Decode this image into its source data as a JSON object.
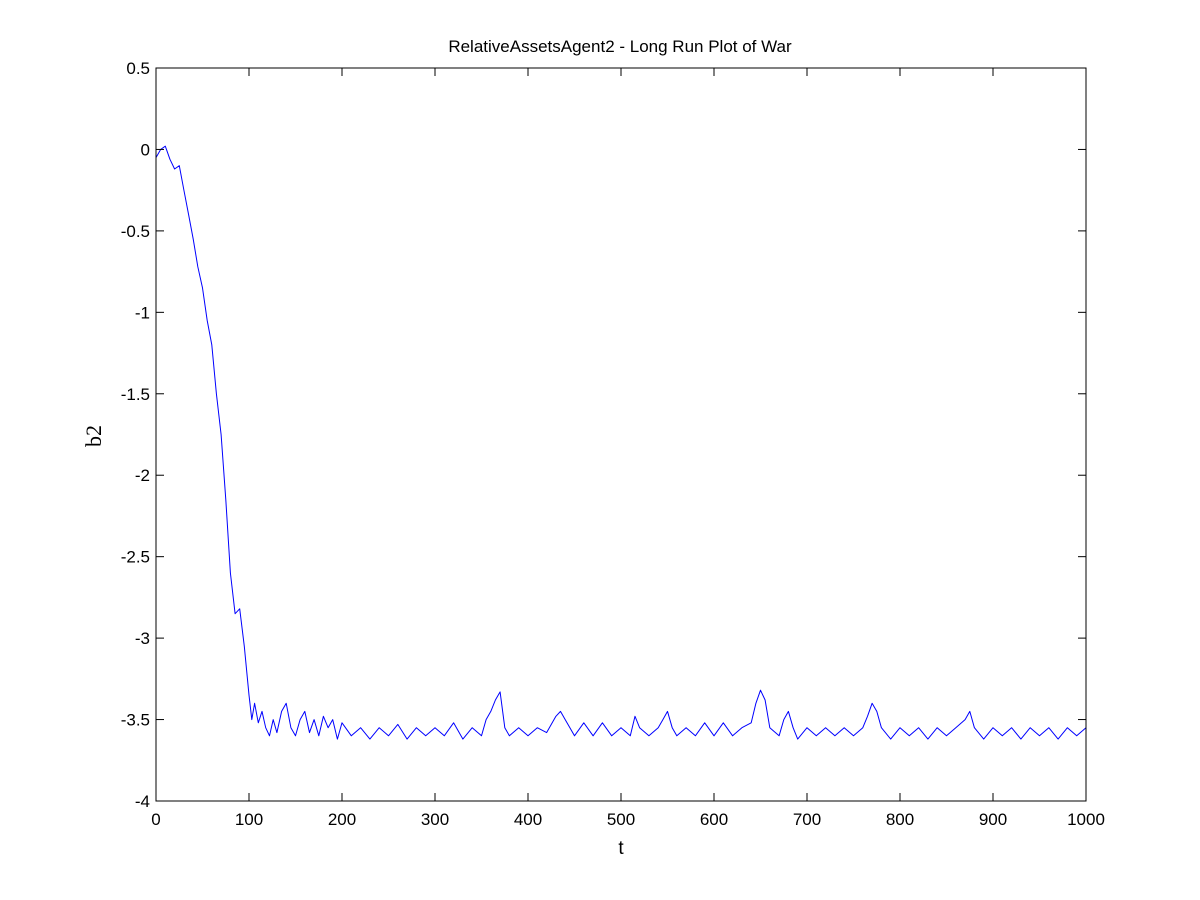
{
  "chart_data": {
    "type": "line",
    "title": "RelativeAssetsAgent2 - Long Run Plot of War",
    "xlabel": "t",
    "ylabel": "b2",
    "xlim": [
      0,
      1000
    ],
    "ylim": [
      -4,
      0.5
    ],
    "x_ticks": [
      0,
      100,
      200,
      300,
      400,
      500,
      600,
      700,
      800,
      900,
      1000
    ],
    "x_tick_labels": [
      "0",
      "100",
      "200",
      "300",
      "400",
      "500",
      "600",
      "700",
      "800",
      "900",
      "1000"
    ],
    "y_ticks": [
      0.5,
      0,
      -0.5,
      -1,
      -1.5,
      -2,
      -2.5,
      -3,
      -3.5,
      -4
    ],
    "y_tick_labels": [
      "0.5",
      "0",
      "-0.5",
      "-1",
      "-1.5",
      "-2",
      "-2.5",
      "-3",
      "-3.5",
      "-4"
    ],
    "grid": false,
    "series_color": "#0000ff",
    "series": [
      {
        "name": "",
        "points": [
          [
            0,
            -0.05
          ],
          [
            5,
            0.0
          ],
          [
            10,
            0.02
          ],
          [
            15,
            -0.06
          ],
          [
            20,
            -0.12
          ],
          [
            25,
            -0.1
          ],
          [
            30,
            -0.25
          ],
          [
            35,
            -0.4
          ],
          [
            40,
            -0.55
          ],
          [
            45,
            -0.72
          ],
          [
            50,
            -0.85
          ],
          [
            55,
            -1.05
          ],
          [
            60,
            -1.2
          ],
          [
            65,
            -1.5
          ],
          [
            70,
            -1.75
          ],
          [
            75,
            -2.15
          ],
          [
            80,
            -2.6
          ],
          [
            85,
            -2.85
          ],
          [
            90,
            -2.82
          ],
          [
            95,
            -3.05
          ],
          [
            100,
            -3.35
          ],
          [
            103,
            -3.5
          ],
          [
            106,
            -3.4
          ],
          [
            110,
            -3.52
          ],
          [
            114,
            -3.45
          ],
          [
            118,
            -3.55
          ],
          [
            122,
            -3.6
          ],
          [
            126,
            -3.5
          ],
          [
            130,
            -3.58
          ],
          [
            135,
            -3.45
          ],
          [
            140,
            -3.4
          ],
          [
            145,
            -3.55
          ],
          [
            150,
            -3.6
          ],
          [
            155,
            -3.5
          ],
          [
            160,
            -3.45
          ],
          [
            165,
            -3.58
          ],
          [
            170,
            -3.5
          ],
          [
            175,
            -3.6
          ],
          [
            180,
            -3.48
          ],
          [
            185,
            -3.55
          ],
          [
            190,
            -3.5
          ],
          [
            195,
            -3.62
          ],
          [
            200,
            -3.52
          ],
          [
            210,
            -3.6
          ],
          [
            220,
            -3.55
          ],
          [
            230,
            -3.62
          ],
          [
            240,
            -3.55
          ],
          [
            250,
            -3.6
          ],
          [
            260,
            -3.53
          ],
          [
            270,
            -3.62
          ],
          [
            280,
            -3.55
          ],
          [
            290,
            -3.6
          ],
          [
            300,
            -3.55
          ],
          [
            310,
            -3.6
          ],
          [
            320,
            -3.52
          ],
          [
            330,
            -3.62
          ],
          [
            340,
            -3.55
          ],
          [
            350,
            -3.6
          ],
          [
            355,
            -3.5
          ],
          [
            360,
            -3.45
          ],
          [
            365,
            -3.38
          ],
          [
            370,
            -3.33
          ],
          [
            375,
            -3.55
          ],
          [
            380,
            -3.6
          ],
          [
            390,
            -3.55
          ],
          [
            400,
            -3.6
          ],
          [
            410,
            -3.55
          ],
          [
            420,
            -3.58
          ],
          [
            430,
            -3.48
          ],
          [
            435,
            -3.45
          ],
          [
            440,
            -3.5
          ],
          [
            450,
            -3.6
          ],
          [
            460,
            -3.52
          ],
          [
            470,
            -3.6
          ],
          [
            480,
            -3.52
          ],
          [
            490,
            -3.6
          ],
          [
            500,
            -3.55
          ],
          [
            510,
            -3.6
          ],
          [
            515,
            -3.48
          ],
          [
            520,
            -3.55
          ],
          [
            530,
            -3.6
          ],
          [
            540,
            -3.55
          ],
          [
            545,
            -3.5
          ],
          [
            550,
            -3.45
          ],
          [
            555,
            -3.55
          ],
          [
            560,
            -3.6
          ],
          [
            570,
            -3.55
          ],
          [
            580,
            -3.6
          ],
          [
            590,
            -3.52
          ],
          [
            600,
            -3.6
          ],
          [
            610,
            -3.52
          ],
          [
            620,
            -3.6
          ],
          [
            630,
            -3.55
          ],
          [
            640,
            -3.52
          ],
          [
            645,
            -3.4
          ],
          [
            650,
            -3.32
          ],
          [
            655,
            -3.38
          ],
          [
            660,
            -3.55
          ],
          [
            670,
            -3.6
          ],
          [
            675,
            -3.5
          ],
          [
            680,
            -3.45
          ],
          [
            685,
            -3.55
          ],
          [
            690,
            -3.62
          ],
          [
            700,
            -3.55
          ],
          [
            710,
            -3.6
          ],
          [
            720,
            -3.55
          ],
          [
            730,
            -3.6
          ],
          [
            740,
            -3.55
          ],
          [
            750,
            -3.6
          ],
          [
            760,
            -3.55
          ],
          [
            765,
            -3.48
          ],
          [
            770,
            -3.4
          ],
          [
            775,
            -3.45
          ],
          [
            780,
            -3.55
          ],
          [
            790,
            -3.62
          ],
          [
            800,
            -3.55
          ],
          [
            810,
            -3.6
          ],
          [
            820,
            -3.55
          ],
          [
            830,
            -3.62
          ],
          [
            840,
            -3.55
          ],
          [
            850,
            -3.6
          ],
          [
            860,
            -3.55
          ],
          [
            870,
            -3.5
          ],
          [
            875,
            -3.45
          ],
          [
            880,
            -3.55
          ],
          [
            890,
            -3.62
          ],
          [
            900,
            -3.55
          ],
          [
            910,
            -3.6
          ],
          [
            920,
            -3.55
          ],
          [
            930,
            -3.62
          ],
          [
            940,
            -3.55
          ],
          [
            950,
            -3.6
          ],
          [
            960,
            -3.55
          ],
          [
            970,
            -3.62
          ],
          [
            980,
            -3.55
          ],
          [
            990,
            -3.6
          ],
          [
            1000,
            -3.55
          ]
        ]
      }
    ]
  }
}
